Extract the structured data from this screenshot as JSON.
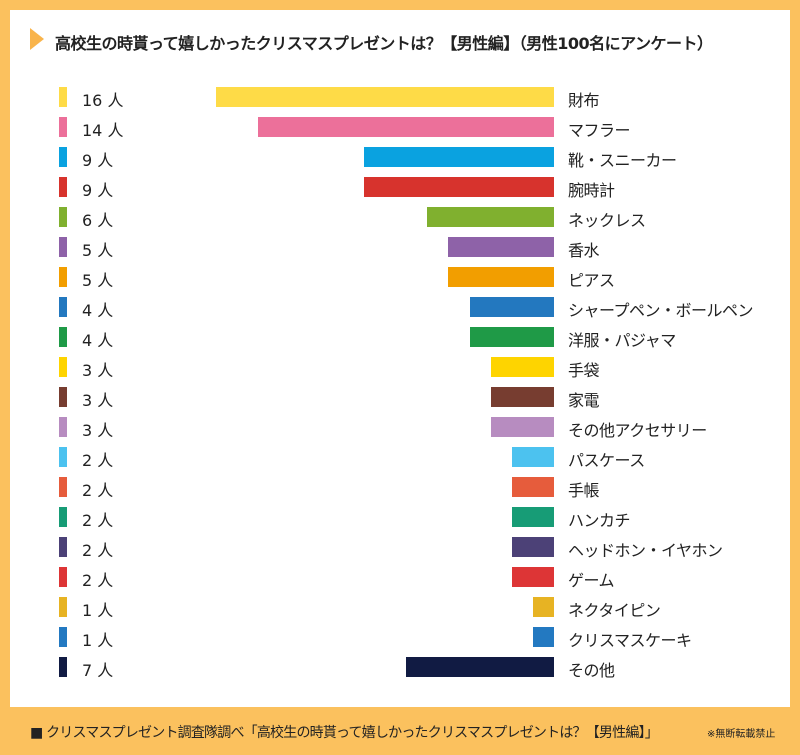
{
  "chart_data": {
    "type": "bar",
    "title": "高校生の時貰って嬉しかったクリスマスプレゼントは？【男性編】（男性100名にアンケート）",
    "unit": "人",
    "categories": [
      "財布",
      "マフラー",
      "靴・スニーカー",
      "腕時計",
      "ネックレス",
      "香水",
      "ピアス",
      "シャープペン・ボールペン",
      "洋服・パジャマ",
      "手袋",
      "家電",
      "その他アクセサリー",
      "パスケース",
      "手帳",
      "ハンカチ",
      "ヘッドホン・イヤホン",
      "ゲーム",
      "ネクタイピン",
      "クリスマスケーキ",
      "その他"
    ],
    "values": [
      16,
      14,
      9,
      9,
      6,
      5,
      5,
      4,
      4,
      3,
      3,
      3,
      2,
      2,
      2,
      2,
      2,
      1,
      1,
      7
    ],
    "colors": [
      "#fedb47",
      "#ec709a",
      "#0aa2e0",
      "#d7332d",
      "#80b02f",
      "#8e62a8",
      "#f29e00",
      "#2378bf",
      "#1f9a47",
      "#fed400",
      "#773d30",
      "#b78cc0",
      "#4cc2ef",
      "#e65c3c",
      "#179c76",
      "#4c4177",
      "#dd3536",
      "#e7b323",
      "#2379c1",
      "#111b43"
    ],
    "orientation": "horizontal-right-aligned"
  },
  "footer": "■ クリスマスプレゼント調査隊調べ「高校生の時貰って嬉しかったクリスマスプレゼントは？【男性編】」",
  "note": "※無断転載禁止"
}
